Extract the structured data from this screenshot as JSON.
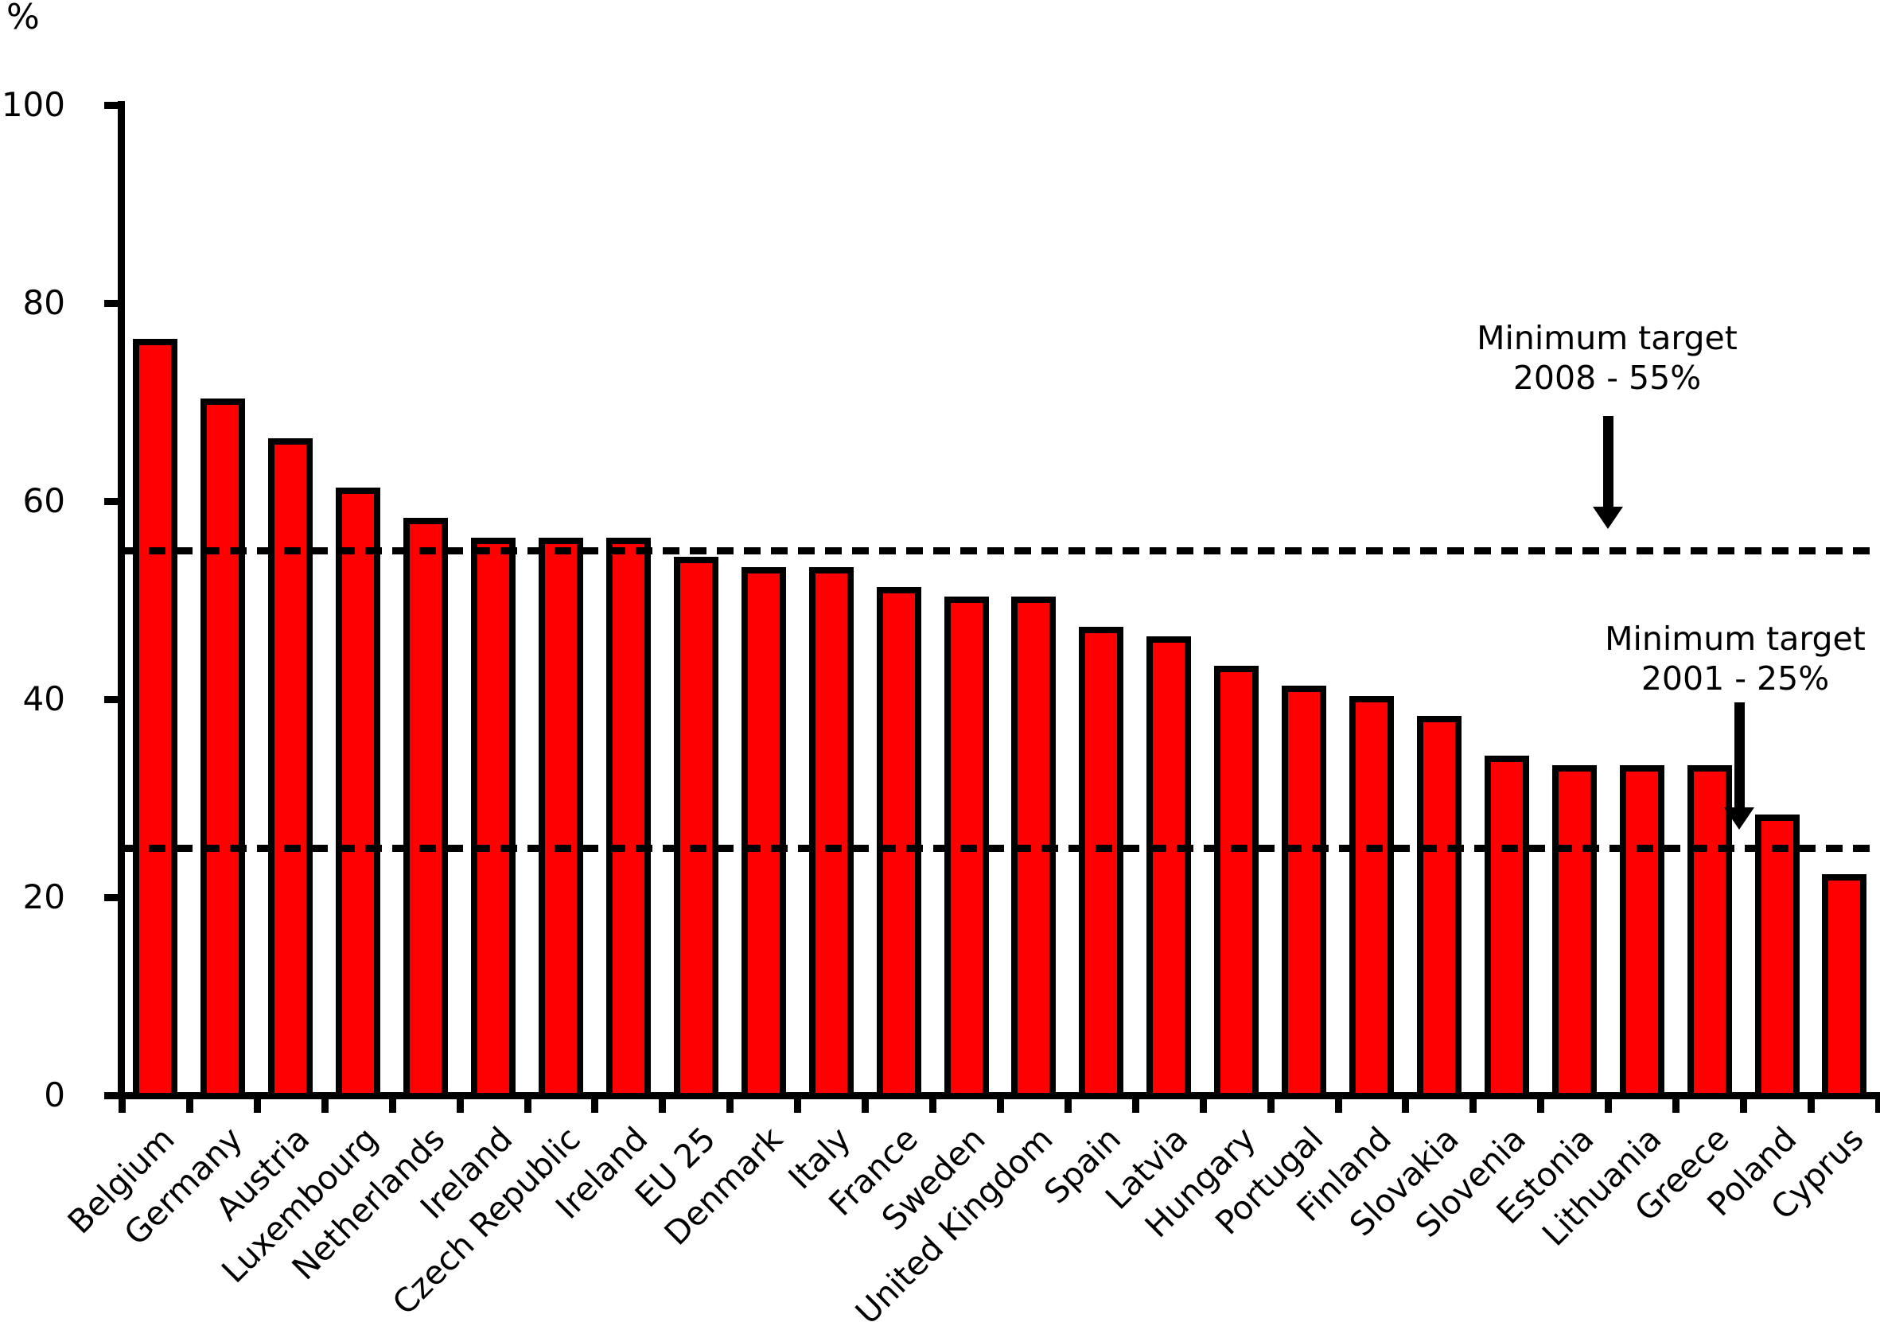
{
  "chart_data": {
    "type": "bar",
    "title": "",
    "ylabel": "%",
    "xlabel": "",
    "ylim": [
      0,
      100
    ],
    "yticks": [
      0,
      20,
      40,
      60,
      80,
      100
    ],
    "grid": false,
    "legend": "none",
    "bar_color": "#ff0000",
    "bar_border_color": "#000000",
    "categories": [
      "Belgium",
      "Germany",
      "Austria",
      "Luxembourg",
      "Netherlands",
      "Ireland",
      "Czech Republic",
      "Ireland",
      "EU 25",
      "Denmark",
      "Italy",
      "France",
      "Sweden",
      "United Kingdom",
      "Spain",
      "Latvia",
      "Hungary",
      "Portugal",
      "Finland",
      "Slovakia",
      "Slovenia",
      "Estonia",
      "Lithuania",
      "Greece",
      "Poland",
      "Cyprus"
    ],
    "values": [
      76,
      70,
      66,
      61,
      58,
      56,
      56,
      56,
      54,
      53,
      53,
      51,
      50,
      50,
      47,
      46,
      43,
      41,
      40,
      38,
      34,
      33,
      33,
      33,
      28,
      22
    ],
    "annotations": [
      {
        "line1": "Minimum target",
        "line2": "2008 - 55%",
        "value": 55
      },
      {
        "line1": "Minimum target",
        "line2": "2001 - 25%",
        "value": 25
      }
    ]
  }
}
